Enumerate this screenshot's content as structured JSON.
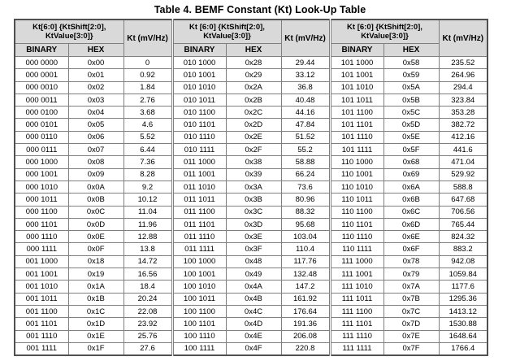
{
  "title": "Table 4. BEMF Constant (Kt) Look-Up Table",
  "table": {
    "groups": [
      {
        "kt_header": "Kt[6:0] {KtShift[2:0], KtValue[3:0]}",
        "kt_unit_header": "Kt (mV/Hz)",
        "sub_headers": {
          "binary": "BINARY",
          "hex": "HEX"
        },
        "rows": [
          [
            "000 0000",
            "0x00",
            "0"
          ],
          [
            "000 0001",
            "0x01",
            "0.92"
          ],
          [
            "000 0010",
            "0x02",
            "1.84"
          ],
          [
            "000 0011",
            "0x03",
            "2.76"
          ],
          [
            "000 0100",
            "0x04",
            "3.68"
          ],
          [
            "000 0101",
            "0x05",
            "4.6"
          ],
          [
            "000 0110",
            "0x06",
            "5.52"
          ],
          [
            "000 0111",
            "0x07",
            "6.44"
          ],
          [
            "000 1000",
            "0x08",
            "7.36"
          ],
          [
            "000 1001",
            "0x09",
            "8.28"
          ],
          [
            "000 1010",
            "0x0A",
            "9.2"
          ],
          [
            "000 1011",
            "0x0B",
            "10.12"
          ],
          [
            "000 1100",
            "0x0C",
            "11.04"
          ],
          [
            "000 1101",
            "0x0D",
            "11.96"
          ],
          [
            "000 1110",
            "0x0E",
            "12.88"
          ],
          [
            "000 1111",
            "0x0F",
            "13.8"
          ],
          [
            "001 1000",
            "0x18",
            "14.72"
          ],
          [
            "001 1001",
            "0x19",
            "16.56"
          ],
          [
            "001 1010",
            "0x1A",
            "18.4"
          ],
          [
            "001 1011",
            "0x1B",
            "20.24"
          ],
          [
            "001 1100",
            "0x1C",
            "22.08"
          ],
          [
            "001 1101",
            "0x1D",
            "23.92"
          ],
          [
            "001 1110",
            "0x1E",
            "25.76"
          ],
          [
            "001 1111",
            "0x1F",
            "27.6"
          ]
        ]
      },
      {
        "kt_header": "Kt [6:0] {KtShift[2:0], KtValue[3:0]}",
        "kt_unit_header": "Kt (mV/Hz)",
        "sub_headers": {
          "binary": "BINARY",
          "hex": "HEX"
        },
        "rows": [
          [
            "010 1000",
            "0x28",
            "29.44"
          ],
          [
            "010 1001",
            "0x29",
            "33.12"
          ],
          [
            "010 1010",
            "0x2A",
            "36.8"
          ],
          [
            "010 1011",
            "0x2B",
            "40.48"
          ],
          [
            "010 1100",
            "0x2C",
            "44.16"
          ],
          [
            "010 1101",
            "0x2D",
            "47.84"
          ],
          [
            "010 1110",
            "0x2E",
            "51.52"
          ],
          [
            "010 1111",
            "0x2F",
            "55.2"
          ],
          [
            "011 1000",
            "0x38",
            "58.88"
          ],
          [
            "011 1001",
            "0x39",
            "66.24"
          ],
          [
            "011 1010",
            "0x3A",
            "73.6"
          ],
          [
            "011 1011",
            "0x3B",
            "80.96"
          ],
          [
            "011 1100",
            "0x3C",
            "88.32"
          ],
          [
            "011 1101",
            "0x3D",
            "95.68"
          ],
          [
            "011 1110",
            "0x3E",
            "103.04"
          ],
          [
            "011 1111",
            "0x3F",
            "110.4"
          ],
          [
            "100 1000",
            "0x48",
            "117.76"
          ],
          [
            "100 1001",
            "0x49",
            "132.48"
          ],
          [
            "100 1010",
            "0x4A",
            "147.2"
          ],
          [
            "100 1011",
            "0x4B",
            "161.92"
          ],
          [
            "100 1100",
            "0x4C",
            "176.64"
          ],
          [
            "100 1101",
            "0x4D",
            "191.36"
          ],
          [
            "100 1110",
            "0x4E",
            "206.08"
          ],
          [
            "100 1111",
            "0x4F",
            "220.8"
          ]
        ]
      },
      {
        "kt_header": "Kt [6:0] {KtShift[2:0], KtValue[3:0]}",
        "kt_unit_header": "Kt (mV/Hz)",
        "sub_headers": {
          "binary": "BINARY",
          "hex": "HEX"
        },
        "rows": [
          [
            "101 1000",
            "0x58",
            "235.52"
          ],
          [
            "101 1001",
            "0x59",
            "264.96"
          ],
          [
            "101 1010",
            "0x5A",
            "294.4"
          ],
          [
            "101 1011",
            "0x5B",
            "323.84"
          ],
          [
            "101 1100",
            "0x5C",
            "353.28"
          ],
          [
            "101 1101",
            "0x5D",
            "382.72"
          ],
          [
            "101 1110",
            "0x5E",
            "412.16"
          ],
          [
            "101 1111",
            "0x5F",
            "441.6"
          ],
          [
            "110 1000",
            "0x68",
            "471.04"
          ],
          [
            "110 1001",
            "0x69",
            "529.92"
          ],
          [
            "110 1010",
            "0x6A",
            "588.8"
          ],
          [
            "110 1011",
            "0x6B",
            "647.68"
          ],
          [
            "110 1100",
            "0x6C",
            "706.56"
          ],
          [
            "110 1101",
            "0x6D",
            "765.44"
          ],
          [
            "110 1110",
            "0x6E",
            "824.32"
          ],
          [
            "110 1111",
            "0x6F",
            "883.2"
          ],
          [
            "111 1000",
            "0x78",
            "942.08"
          ],
          [
            "111 1001",
            "0x79",
            "1059.84"
          ],
          [
            "111 1010",
            "0x7A",
            "1177.6"
          ],
          [
            "111 1011",
            "0x7B",
            "1295.36"
          ],
          [
            "111 1100",
            "0x7C",
            "1413.12"
          ],
          [
            "111 1101",
            "0x7D",
            "1530.88"
          ],
          [
            "111 1110",
            "0x7E",
            "1648.64"
          ],
          [
            "111 1111",
            "0x7F",
            "1766.4"
          ]
        ]
      }
    ],
    "colors": {
      "header_bg": "#d9d9d9",
      "border": "#7f7f7f",
      "outer_border": "#505050",
      "text": "#000000"
    }
  }
}
